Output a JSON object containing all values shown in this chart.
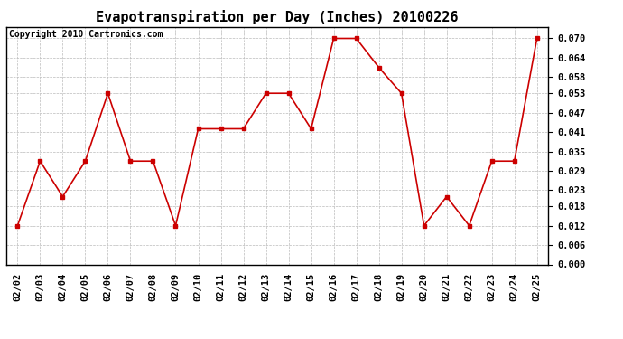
{
  "title": "Evapotranspiration per Day (Inches) 20100226",
  "copyright_text": "Copyright 2010 Cartronics.com",
  "dates": [
    "02/02",
    "02/03",
    "02/04",
    "02/05",
    "02/06",
    "02/07",
    "02/08",
    "02/09",
    "02/10",
    "02/11",
    "02/12",
    "02/13",
    "02/14",
    "02/15",
    "02/16",
    "02/17",
    "02/18",
    "02/19",
    "02/20",
    "02/21",
    "02/22",
    "02/23",
    "02/24",
    "02/25"
  ],
  "values": [
    0.012,
    0.032,
    0.021,
    0.032,
    0.053,
    0.032,
    0.032,
    0.012,
    0.042,
    0.042,
    0.042,
    0.053,
    0.053,
    0.042,
    0.07,
    0.07,
    0.061,
    0.053,
    0.012,
    0.021,
    0.012,
    0.032,
    0.032,
    0.07
  ],
  "ylim": [
    0.0,
    0.0735
  ],
  "yticks": [
    0.0,
    0.006,
    0.012,
    0.018,
    0.023,
    0.029,
    0.035,
    0.041,
    0.047,
    0.053,
    0.058,
    0.064,
    0.07
  ],
  "line_color": "#cc0000",
  "marker_color": "#cc0000",
  "bg_color": "#ffffff",
  "grid_color": "#bbbbbb",
  "title_fontsize": 11,
  "tick_fontsize": 7.5,
  "copyright_fontsize": 7
}
